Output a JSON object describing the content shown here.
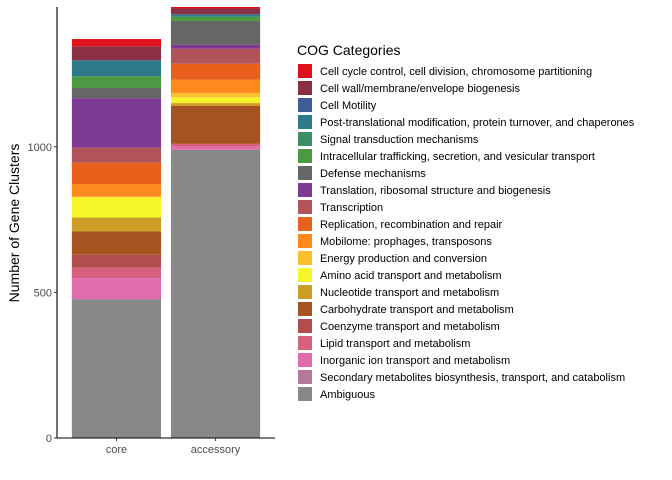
{
  "chart_data": {
    "type": "bar",
    "stacked": true,
    "title": "",
    "xlabel": "",
    "ylabel": "Number of Gene Clusters",
    "ylim": [
      0,
      1480
    ],
    "yticks": [
      0,
      500,
      1000
    ],
    "categories": [
      "core",
      "accessory"
    ],
    "grid": false,
    "legend_title": "COG Categories",
    "legend_position": "right",
    "series": [
      {
        "name": "Ambiguous",
        "color": "#888888",
        "values": [
          477,
          990
        ]
      },
      {
        "name": "Secondary metabolites biosynthesis, transport, and catabolism",
        "color": "#B4789A",
        "values": [
          0,
          0
        ]
      },
      {
        "name": "Inorganic ion transport and metabolism",
        "color": "#E06CAC",
        "values": [
          72,
          10
        ]
      },
      {
        "name": "Lipid transport and metabolism",
        "color": "#D95F7F",
        "values": [
          36,
          10
        ]
      },
      {
        "name": "Coenzyme transport and metabolism",
        "color": "#B24D4D",
        "values": [
          44,
          0
        ]
      },
      {
        "name": "Carbohydrate transport and metabolism",
        "color": "#A65322",
        "values": [
          80,
          130
        ]
      },
      {
        "name": "Nucleotide transport and metabolism",
        "color": "#CC9E28",
        "values": [
          48,
          10
        ]
      },
      {
        "name": "Amino acid transport and metabolism",
        "color": "#F5F52A",
        "values": [
          70,
          20
        ]
      },
      {
        "name": "Energy production and conversion",
        "color": "#FDBF2D",
        "values": [
          2,
          15
        ]
      },
      {
        "name": "Mobilome: prophages, transposons",
        "color": "#FE8A1E",
        "values": [
          43,
          45
        ]
      },
      {
        "name": "Replication, recombination and repair",
        "color": "#E8601C",
        "values": [
          73,
          55
        ]
      },
      {
        "name": "Transcription",
        "color": "#B0545A",
        "values": [
          52,
          52
        ]
      },
      {
        "name": "Translation, ribosomal structure and biogenesis",
        "color": "#7E3A92",
        "values": [
          170,
          13
        ]
      },
      {
        "name": "Defense mechanisms",
        "color": "#666666",
        "values": [
          35,
          82
        ]
      },
      {
        "name": "Intracellular trafficking, secretion, and vesicular transport",
        "color": "#4B9A43",
        "values": [
          40,
          15
        ]
      },
      {
        "name": "Signal transduction mechanisms",
        "color": "#3C8D6A",
        "values": [
          0,
          0
        ]
      },
      {
        "name": "Post-translational modification, protein turnover, and chaperones",
        "color": "#2E7A8A",
        "values": [
          55,
          8
        ]
      },
      {
        "name": "Cell Motility",
        "color": "#3F5C96",
        "values": [
          0,
          0
        ]
      },
      {
        "name": "Cell wall/membrane/envelope biogenesis",
        "color": "#8B2F45",
        "values": [
          48,
          20
        ]
      },
      {
        "name": "Cell cycle control, cell division, chromosome partitioning",
        "color": "#E0101C",
        "values": [
          25,
          5
        ]
      }
    ],
    "legend_order": [
      "Cell cycle control, cell division, chromosome partitioning",
      "Cell wall/membrane/envelope biogenesis",
      "Cell Motility",
      "Post-translational modification, protein turnover, and chaperones",
      "Signal transduction mechanisms",
      "Intracellular trafficking, secretion, and vesicular transport",
      "Defense mechanisms",
      "Translation, ribosomal structure and biogenesis",
      "Transcription",
      "Replication, recombination and repair",
      "Mobilome: prophages, transposons",
      "Energy production and conversion",
      "Amino acid transport and metabolism",
      "Nucleotide transport and metabolism",
      "Carbohydrate transport and metabolism",
      "Coenzyme transport and metabolism",
      "Lipid transport and metabolism",
      "Inorganic ion transport and metabolism",
      "Secondary metabolites biosynthesis, transport, and catabolism",
      "Ambiguous"
    ]
  }
}
